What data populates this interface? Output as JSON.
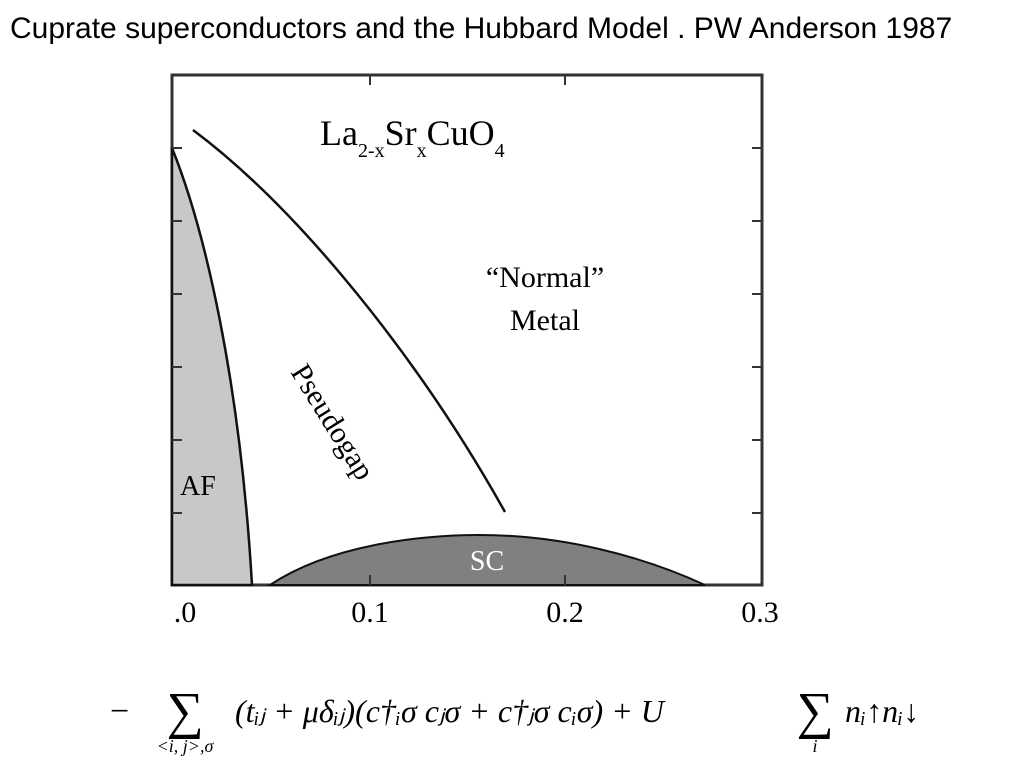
{
  "header": {
    "title": "Cuprate superconductors and the Hubbard Model . PW Anderson 1987"
  },
  "diagram": {
    "formula": [
      "La",
      "2-x",
      "Sr",
      "x",
      "CuO",
      "4"
    ],
    "regions": {
      "normal_metal": [
        "“Normal”",
        "Metal"
      ],
      "pseudogap": "Pseudogap",
      "af": "AF",
      "sc": "SC"
    },
    "x_tick_labels": [
      ".0",
      "0.1",
      "0.2",
      "0.3"
    ]
  },
  "equation": {
    "lead": "−",
    "sum1": "∑",
    "sum1_index": "<i, j>,σ",
    "body": "(tᵢⱼ + μδᵢⱼ)(c†ᵢσ cⱼσ + c†ⱼσ cᵢσ) + U",
    "sum2": "∑",
    "sum2_index": "i",
    "tail": "nᵢ↑nᵢ↓"
  }
}
